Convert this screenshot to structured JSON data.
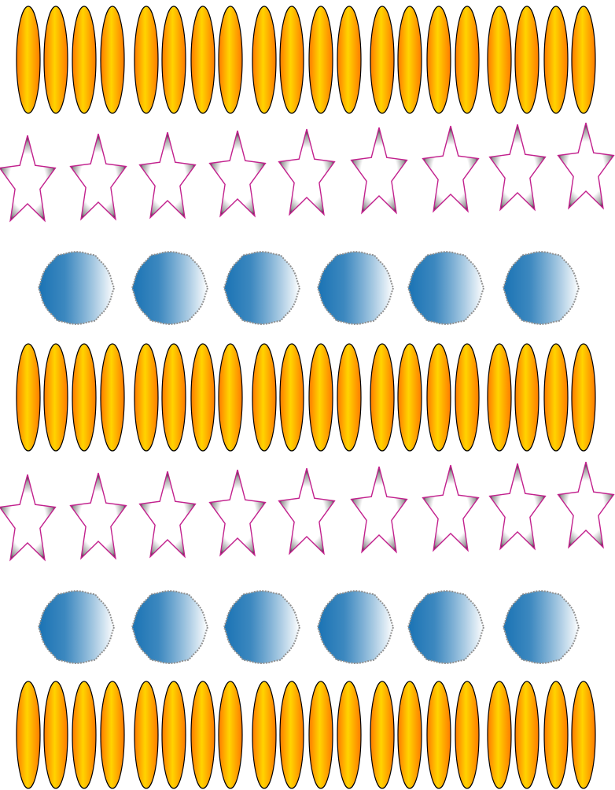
{
  "pattern": {
    "background": "#ffffff",
    "rows": [
      {
        "shape": "ellipse",
        "count": 20
      },
      {
        "shape": "star",
        "count": 9
      },
      {
        "shape": "circle",
        "count": 6
      },
      {
        "shape": "ellipse",
        "count": 20
      },
      {
        "shape": "star",
        "count": 9
      },
      {
        "shape": "circle",
        "count": 6
      },
      {
        "shape": "ellipse",
        "count": 20
      }
    ],
    "colors": {
      "ellipse_edge": "#ff7a00",
      "ellipse_center": "#ffd400",
      "ellipse_outline": "#000000",
      "star_outline": "#c2208d",
      "star_shadow": "#000000",
      "star_fill": "#ffffff",
      "circle_dark": "#1a73b4",
      "circle_light": "#ffffff",
      "circle_border": "#8f8f8f"
    }
  }
}
